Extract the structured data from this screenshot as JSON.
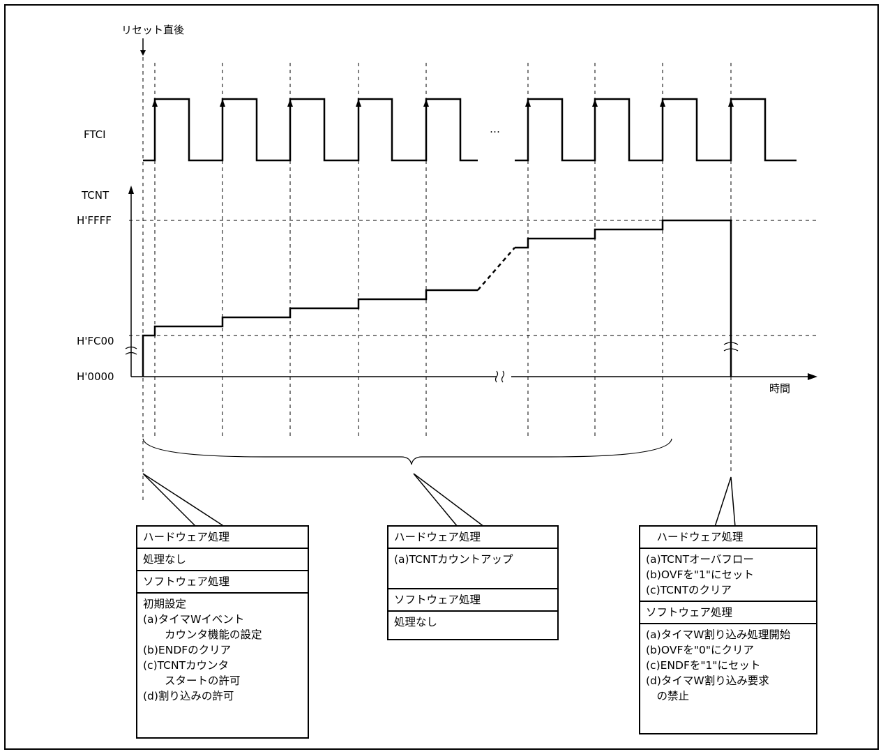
{
  "labels": {
    "reset": "リセット直後",
    "ftci": "FTCI",
    "tcnt": "TCNT",
    "hffff": "H'FFFF",
    "hfc00": "H'FC00",
    "h0000": "H'0000",
    "time": "時間",
    "ellipsis": "…"
  },
  "box_left": {
    "sections": [
      {
        "lines": [
          "ハードウェア処理"
        ]
      },
      {
        "lines": [
          "処理なし"
        ]
      },
      {
        "lines": [
          "ソフトウェア処理"
        ]
      },
      {
        "lines": [
          "初期設定",
          "(a)タイマWイベント",
          "　　カウンタ機能の設定",
          "(b)ENDFのクリア",
          "(c)TCNTカウンタ",
          "　　スタートの許可",
          "(d)割り込みの許可"
        ]
      }
    ]
  },
  "box_middle": {
    "sections": [
      {
        "lines": [
          "ハードウェア処理"
        ]
      },
      {
        "lines": [
          "(a)TCNTカウントアップ"
        ]
      },
      {
        "lines": [
          "ソフトウェア処理"
        ]
      },
      {
        "lines": [
          "処理なし"
        ]
      }
    ]
  },
  "box_right": {
    "sections": [
      {
        "lines": [
          "　ハードウェア処理"
        ]
      },
      {
        "lines": [
          "(a)TCNTオーバフロー",
          "(b)OVFを\"1\"にセット",
          "(c)TCNTのクリア"
        ]
      },
      {
        "lines": [
          "ソフトウェア処理"
        ]
      },
      {
        "lines": [
          "(a)タイマW割り込み処理開始",
          "(b)OVFを\"0\"にクリア",
          "(c)ENDFを\"1\"にセット",
          "(d)タイマW割り込み要求",
          "　の禁止"
        ]
      }
    ]
  }
}
